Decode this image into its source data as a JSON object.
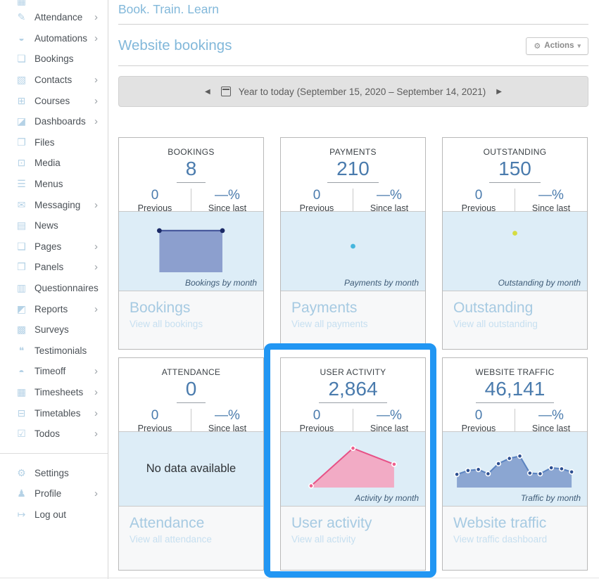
{
  "app": {
    "title": "Book. Train. Learn"
  },
  "colors": {
    "accent_blue": "#2196f3",
    "heading_blue": "#82b8da",
    "stat_blue": "#4a7bad",
    "chart_bg": "#ddedf7"
  },
  "sidebar": {
    "partial_top_icon": {
      "icon": "grid",
      "glyph": "▦"
    },
    "items": [
      {
        "slug": "attendance",
        "label": "Attendance",
        "icon": "clipboard",
        "glyph": "✎",
        "chevron": true
      },
      {
        "slug": "automations",
        "label": "Automations",
        "icon": "bell",
        "glyph": "◒",
        "chevron": true
      },
      {
        "slug": "bookings",
        "label": "Bookings",
        "icon": "tag",
        "glyph": "❏",
        "chevron": false
      },
      {
        "slug": "contacts",
        "label": "Contacts",
        "icon": "users",
        "glyph": "▧",
        "chevron": true
      },
      {
        "slug": "courses",
        "label": "Courses",
        "icon": "course",
        "glyph": "⊞",
        "chevron": true
      },
      {
        "slug": "dashboards",
        "label": "Dashboards",
        "icon": "bar-chart",
        "glyph": "◪",
        "chevron": true
      },
      {
        "slug": "files",
        "label": "Files",
        "icon": "folder",
        "glyph": "❐",
        "chevron": false
      },
      {
        "slug": "media",
        "label": "Media",
        "icon": "monitor",
        "glyph": "⊡",
        "chevron": false
      },
      {
        "slug": "menus",
        "label": "Menus",
        "icon": "menu-lines",
        "glyph": "☰",
        "chevron": false
      },
      {
        "slug": "messaging",
        "label": "Messaging",
        "icon": "mail",
        "glyph": "✉",
        "chevron": true
      },
      {
        "slug": "news",
        "label": "News",
        "icon": "newspaper",
        "glyph": "▤",
        "chevron": false
      },
      {
        "slug": "pages",
        "label": "Pages",
        "icon": "page",
        "glyph": "❑",
        "chevron": true
      },
      {
        "slug": "panels",
        "label": "Panels",
        "icon": "panels",
        "glyph": "❒",
        "chevron": true
      },
      {
        "slug": "questionnaires",
        "label": "Questionnaires",
        "icon": "questionnaire",
        "glyph": "▥",
        "chevron": false
      },
      {
        "slug": "reports",
        "label": "Reports",
        "icon": "report-chart",
        "glyph": "◩",
        "chevron": true
      },
      {
        "slug": "surveys",
        "label": "Surveys",
        "icon": "survey",
        "glyph": "▩",
        "chevron": false
      },
      {
        "slug": "testimonials",
        "label": "Testimonials",
        "icon": "quote",
        "glyph": "❝",
        "chevron": false
      },
      {
        "slug": "timeoff",
        "label": "Timeoff",
        "icon": "clock",
        "glyph": "◓",
        "chevron": true
      },
      {
        "slug": "timesheets",
        "label": "Timesheets",
        "icon": "timesheet",
        "glyph": "▦",
        "chevron": true
      },
      {
        "slug": "timetables",
        "label": "Timetables",
        "icon": "timetable",
        "glyph": "⊟",
        "chevron": true
      },
      {
        "slug": "todos",
        "label": "Todos",
        "icon": "todo-check",
        "glyph": "☑",
        "chevron": true
      }
    ],
    "footer_items": [
      {
        "slug": "settings",
        "label": "Settings",
        "icon": "gear",
        "glyph": "⚙",
        "chevron": false
      },
      {
        "slug": "profile",
        "label": "Profile",
        "icon": "user",
        "glyph": "♟",
        "chevron": true
      },
      {
        "slug": "logout",
        "label": "Log out",
        "icon": "logout",
        "glyph": "↦",
        "chevron": false
      }
    ]
  },
  "header": {
    "section_title": "Website bookings",
    "actions_label": "Actions"
  },
  "date_bar": {
    "label": "Year to today (September 15, 2020 – September 14, 2021)"
  },
  "cards": [
    {
      "slug": "bookings",
      "label": "BOOKINGS",
      "value": "8",
      "previous": "0",
      "previous_label": "Previous",
      "change": "—%",
      "change_label": "Since last",
      "footer_title": "Bookings",
      "footer_subtitle": "View all bookings",
      "highlighted": false,
      "chart": {
        "kind": "area",
        "caption": "Bookings by month",
        "fill": "#8c9fce",
        "line": "#3d4f96",
        "dot": "#1b2a66",
        "dot_ring": "",
        "x": [
          0.28,
          0.717
        ],
        "values": [
          4,
          4
        ],
        "max": 5
      }
    },
    {
      "slug": "payments",
      "label": "PAYMENTS",
      "value": "210",
      "previous": "0",
      "previous_label": "Previous",
      "change": "—%",
      "change_label": "Since last",
      "footer_title": "Payments",
      "footer_subtitle": "View all payments",
      "highlighted": false,
      "chart": {
        "kind": "dot",
        "caption": "Payments by month",
        "fill": "",
        "line": "",
        "dot": "#45b6dd",
        "dot_ring": "",
        "x": [
          0.5
        ],
        "values": [
          210
        ],
        "max": 420
      }
    },
    {
      "slug": "outstanding",
      "label": "OUTSTANDING",
      "value": "150",
      "previous": "0",
      "previous_label": "Previous",
      "change": "—%",
      "change_label": "Since last",
      "footer_title": "Outstanding",
      "footer_subtitle": "View all outstanding",
      "highlighted": false,
      "chart": {
        "kind": "dot",
        "caption": "Outstanding by month",
        "fill": "",
        "line": "",
        "dot": "#d5dc41",
        "dot_ring": "",
        "x": [
          0.5
        ],
        "values": [
          150
        ],
        "max": 200
      }
    },
    {
      "slug": "attendance",
      "label": "ATTENDANCE",
      "value": "0",
      "previous": "0",
      "previous_label": "Previous",
      "change": "—%",
      "change_label": "Since last",
      "footer_title": "Attendance",
      "footer_subtitle": "View all attendance",
      "highlighted": false,
      "chart": {
        "kind": "none",
        "no_data": "No data available"
      }
    },
    {
      "slug": "user-activity",
      "label": "USER ACTIVITY",
      "value": "2,864",
      "previous": "0",
      "previous_label": "Previous",
      "change": "—%",
      "change_label": "Since last",
      "footer_title": "User activity",
      "footer_subtitle": "View all activity",
      "highlighted": true,
      "chart": {
        "kind": "area",
        "caption": "Activity by month",
        "fill": "#f2abc5",
        "line": "#e75186",
        "dot": "#ee5f8e",
        "dot_ring": "#ffffff",
        "x": [
          0.21,
          0.5,
          0.785
        ],
        "values": [
          75,
          1753,
          1036
        ],
        "max": 2100
      }
    },
    {
      "slug": "website-traffic",
      "label": "WEBSITE TRAFFIC",
      "value": "46,141",
      "previous": "0",
      "previous_label": "Previous",
      "change": "—%",
      "change_label": "Since last",
      "footer_title": "Website traffic",
      "footer_subtitle": "View traffic dashboard",
      "highlighted": false,
      "chart": {
        "kind": "area",
        "caption": "Traffic by month",
        "fill": "#8ba6d2",
        "line": "#5b83c0",
        "dot": "#2c4f91",
        "dot_ring": "#ffffff",
        "x": [
          0.098,
          0.175,
          0.247,
          0.314,
          0.386,
          0.462,
          0.534,
          0.604,
          0.675,
          0.752,
          0.824,
          0.893
        ],
        "values": [
          2656,
          3429,
          3643,
          2785,
          4818,
          5874,
          6338,
          2913,
          2785,
          3985,
          3771,
          3144
        ],
        "max": 9500
      }
    }
  ],
  "chart_data": [
    {
      "type": "area",
      "title": "Bookings by month",
      "values": [
        4,
        4
      ]
    },
    {
      "type": "scatter",
      "title": "Payments by month",
      "values": [
        210
      ]
    },
    {
      "type": "scatter",
      "title": "Outstanding by month",
      "values": [
        150
      ]
    },
    {
      "type": "area",
      "title": "Activity by month",
      "values": [
        75,
        1753,
        1036
      ]
    },
    {
      "type": "area",
      "title": "Traffic by month",
      "values": [
        2656,
        3429,
        3643,
        2785,
        4818,
        5874,
        6338,
        2913,
        2785,
        3985,
        3771,
        3144
      ]
    }
  ]
}
